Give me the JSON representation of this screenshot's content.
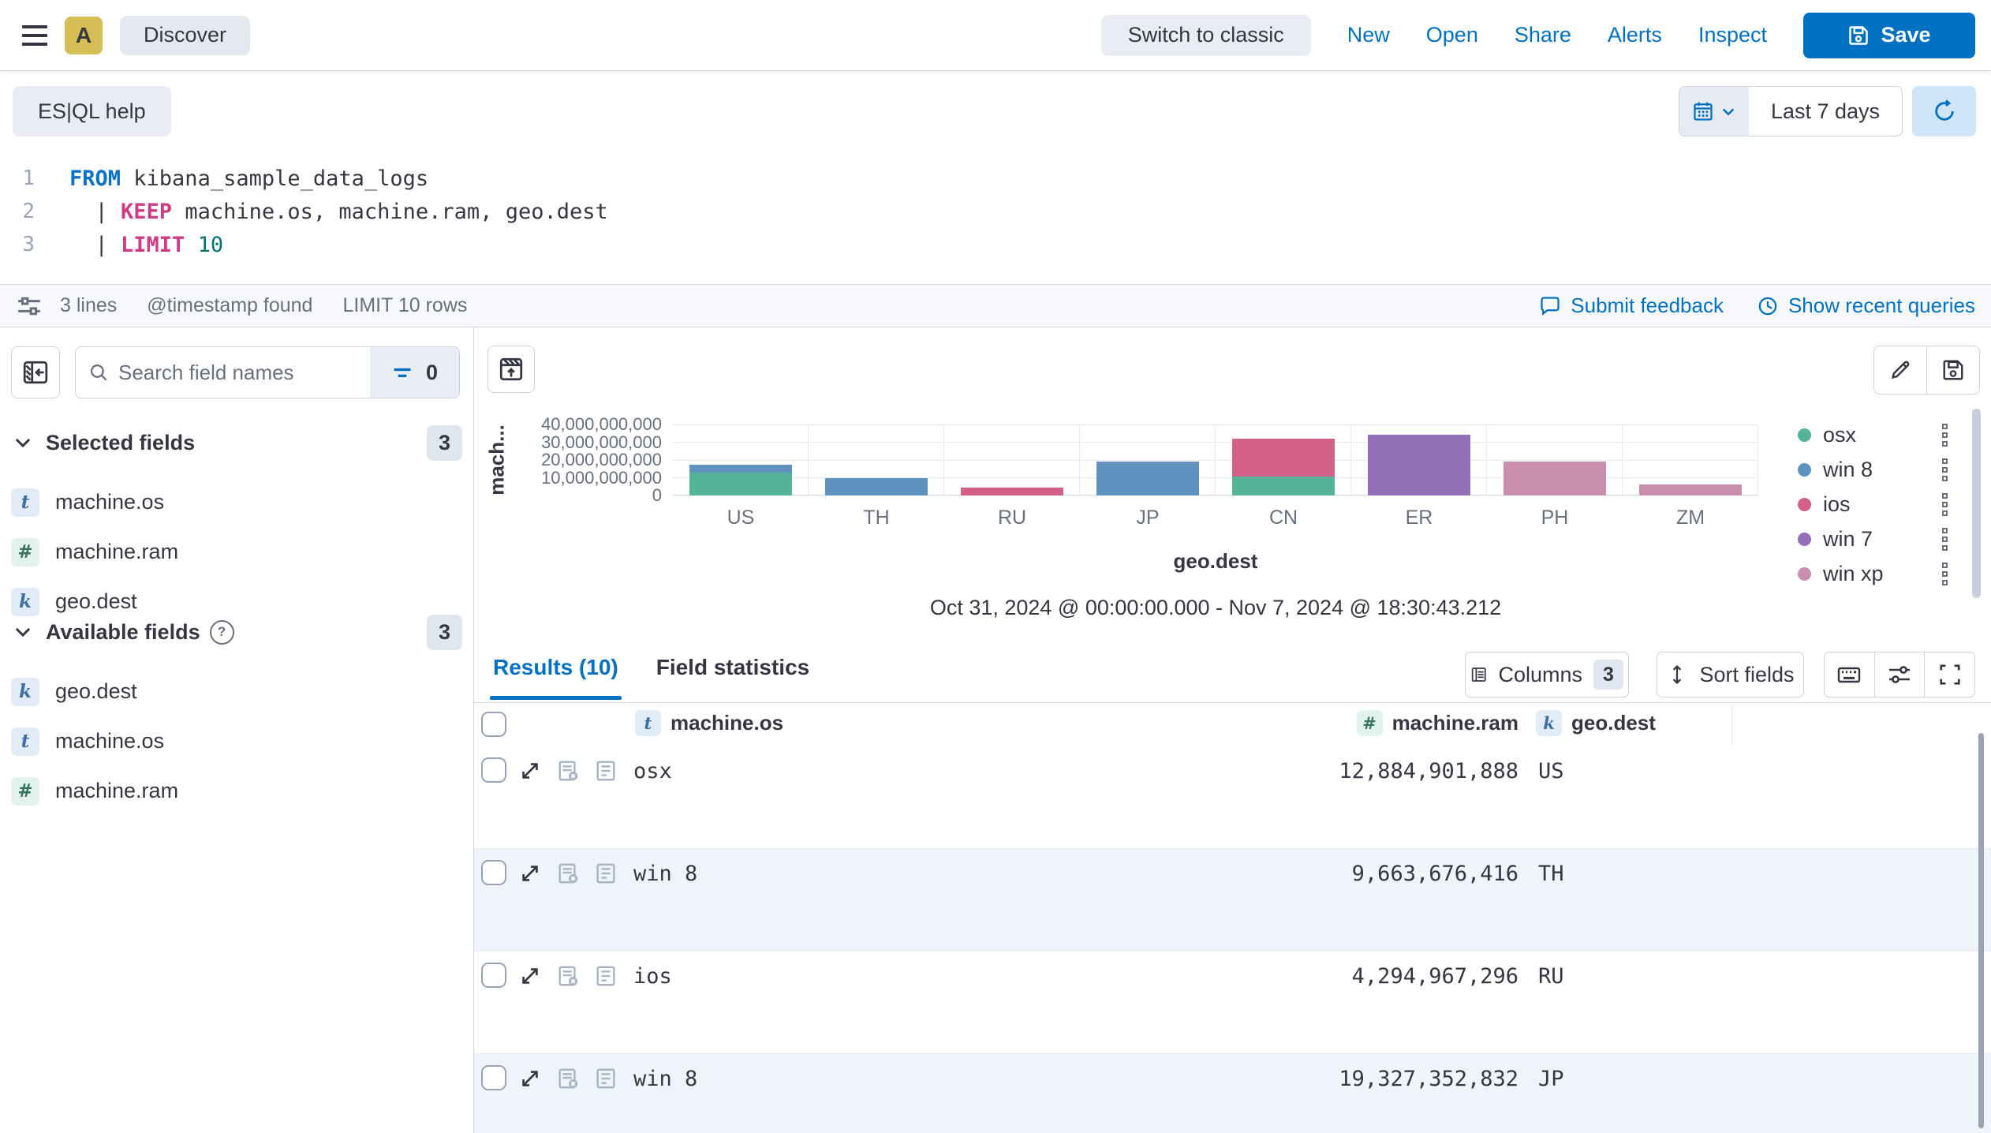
{
  "header": {
    "app_initial": "A",
    "breadcrumb": "Discover",
    "switch_classic": "Switch to classic",
    "nav": [
      "New",
      "Open",
      "Share",
      "Alerts",
      "Inspect"
    ],
    "save": "Save"
  },
  "query_bar": {
    "help": "ES|QL help",
    "time_range": "Last 7 days"
  },
  "editor": {
    "lines": [
      {
        "num": "1",
        "tokens": [
          {
            "text": "FROM",
            "type": "kw"
          },
          {
            "text": " kibana_sample_data_logs",
            "type": "plain"
          }
        ]
      },
      {
        "num": "2",
        "tokens": [
          {
            "text": "  | ",
            "type": "plain"
          },
          {
            "text": "KEEP",
            "type": "fn"
          },
          {
            "text": " machine.os, machine.ram, geo.dest",
            "type": "plain"
          }
        ]
      },
      {
        "num": "3",
        "tokens": [
          {
            "text": "  | ",
            "type": "plain"
          },
          {
            "text": "LIMIT",
            "type": "fn"
          },
          {
            "text": " ",
            "type": "plain"
          },
          {
            "text": "10",
            "type": "num"
          }
        ]
      }
    ]
  },
  "status_bar": {
    "items": [
      "3 lines",
      "@timestamp found",
      "LIMIT 10 rows"
    ],
    "feedback": "Submit feedback",
    "recent_queries": "Show recent queries"
  },
  "sidebar": {
    "search_placeholder": "Search field names",
    "filter_count": "0",
    "sections": [
      {
        "label": "Selected fields",
        "count": "3",
        "items": [
          {
            "type": "t",
            "name": "machine.os"
          },
          {
            "type": "#",
            "name": "machine.ram"
          },
          {
            "type": "k",
            "name": "geo.dest"
          }
        ]
      },
      {
        "label": "Available fields",
        "count": "3",
        "items": [
          {
            "type": "k",
            "name": "geo.dest"
          },
          {
            "type": "t",
            "name": "machine.os"
          },
          {
            "type": "#",
            "name": "machine.ram"
          }
        ]
      }
    ]
  },
  "chart": {
    "y_label": "mach...",
    "x_label": "geo.dest",
    "date_range": "Oct 31, 2024 @ 00:00:00.000 - Nov 7, 2024 @ 18:30:43.212",
    "y_ticks": [
      "40,000,000,000",
      "30,000,000,000",
      "20,000,000,000",
      "10,000,000,000",
      "0"
    ]
  },
  "chart_data": {
    "type": "bar",
    "stacked": true,
    "title": "",
    "xlabel": "geo.dest",
    "ylabel": "machine.ram",
    "ylim": [
      0,
      40000000000
    ],
    "grid": true,
    "legend_position": "right",
    "categories": [
      "US",
      "TH",
      "RU",
      "JP",
      "CN",
      "ER",
      "PH",
      "ZM"
    ],
    "series": [
      {
        "name": "osx",
        "color": "#54B399",
        "values": [
          12900000000,
          0,
          0,
          0,
          10700000000,
          0,
          0,
          0
        ]
      },
      {
        "name": "win 8",
        "color": "#6092C0",
        "values": [
          4300000000,
          9663676416,
          0,
          19327352832,
          0,
          0,
          0,
          0
        ]
      },
      {
        "name": "ios",
        "color": "#D36086",
        "values": [
          0,
          0,
          4294967296,
          0,
          21500000000,
          0,
          0,
          0
        ]
      },
      {
        "name": "win 7",
        "color": "#9170B8",
        "values": [
          0,
          0,
          0,
          0,
          0,
          34400000000,
          0,
          0
        ]
      },
      {
        "name": "win xp",
        "color": "#CA8EAE",
        "values": [
          0,
          0,
          0,
          0,
          0,
          0,
          19300000000,
          6400000000
        ]
      }
    ]
  },
  "results": {
    "tab_results": "Results (10)",
    "tab_stats": "Field statistics",
    "columns_label": "Columns",
    "columns_count": "3",
    "sort_label": "Sort fields",
    "table": {
      "headers": [
        {
          "type": "t",
          "name": "machine.os"
        },
        {
          "type": "#",
          "name": "machine.ram"
        },
        {
          "type": "k",
          "name": "geo.dest"
        }
      ],
      "rows": [
        {
          "os": "osx",
          "ram": "12,884,901,888",
          "dest": "US"
        },
        {
          "os": "win 8",
          "ram": "9,663,676,416",
          "dest": "TH"
        },
        {
          "os": "ios",
          "ram": "4,294,967,296",
          "dest": "RU"
        },
        {
          "os": "win 8",
          "ram": "19,327,352,832",
          "dest": "JP"
        }
      ]
    }
  }
}
